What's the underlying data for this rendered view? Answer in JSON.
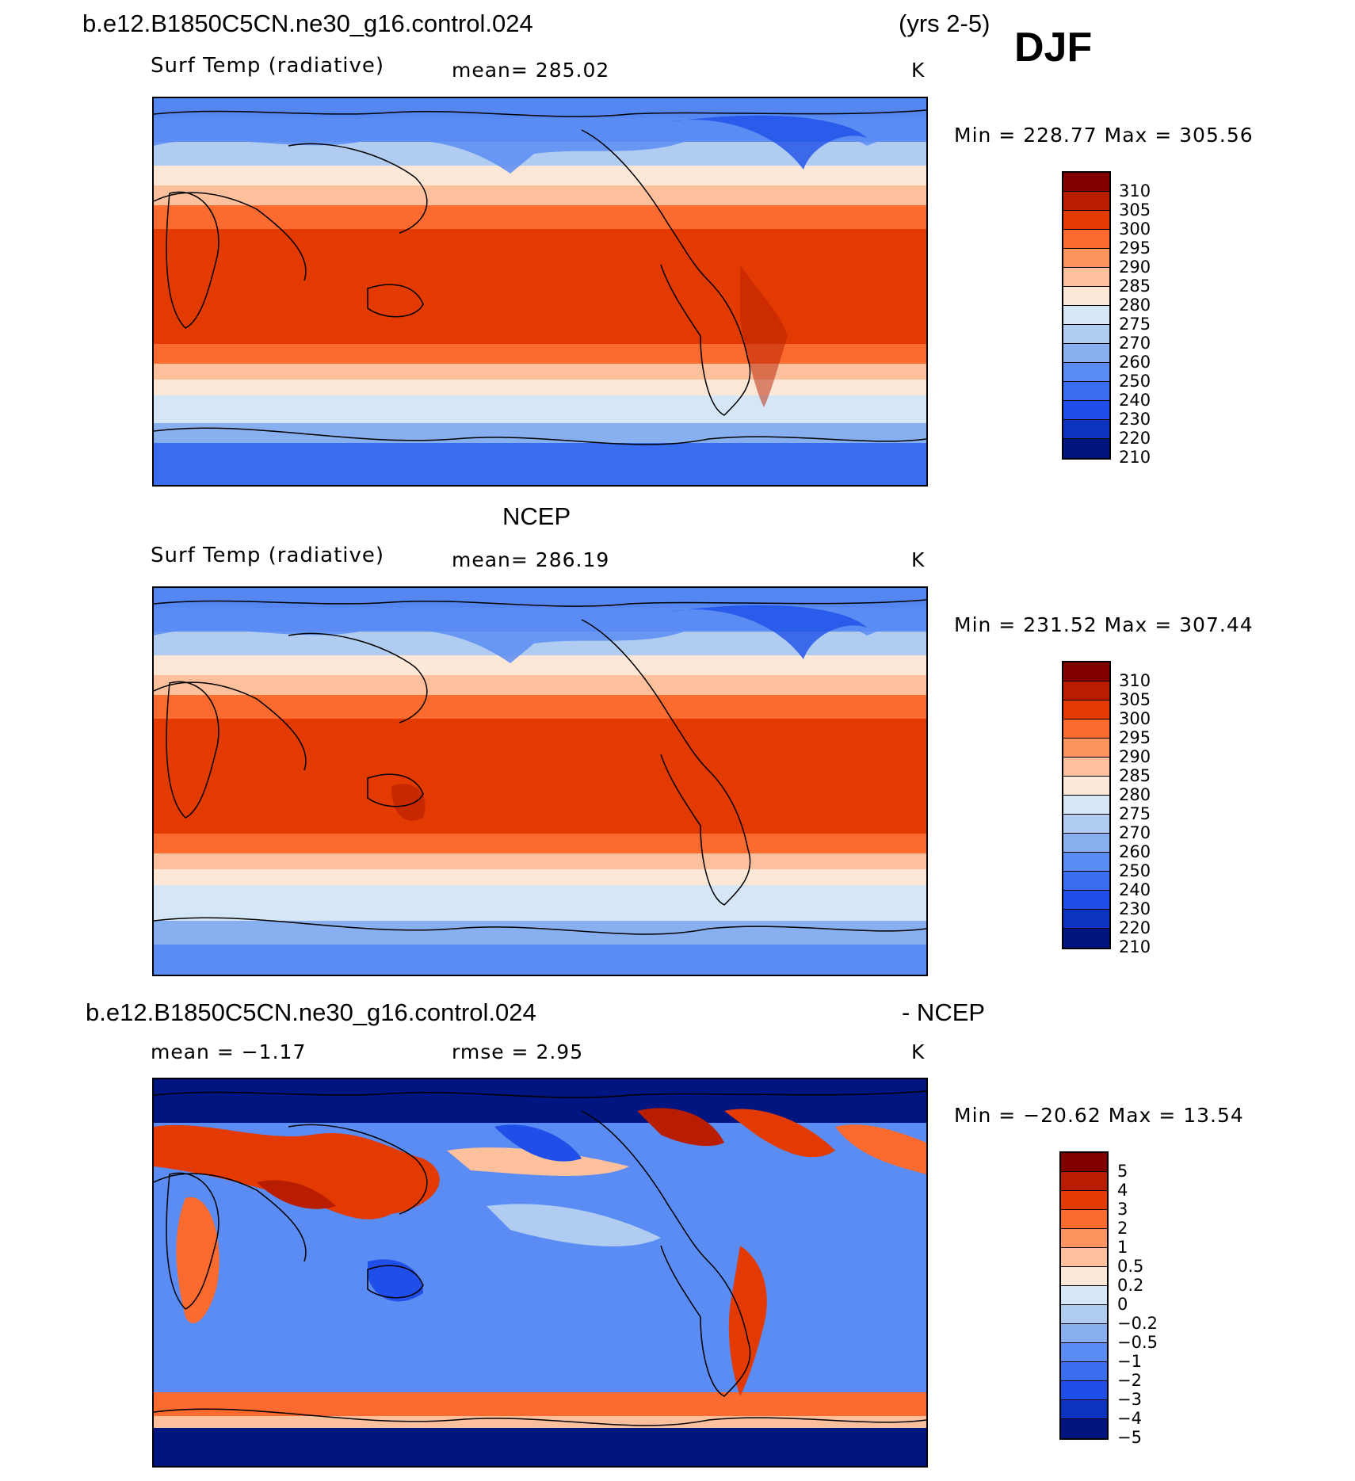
{
  "header": {
    "case": "b.e12.B1850C5CN.ne30_g16.control.024",
    "years": "(yrs 2-5)",
    "season": "DJF"
  },
  "panels": [
    {
      "title": "",
      "variable": "Surf Temp (radiative)",
      "mean": "mean=  285.02",
      "units": "K",
      "minmax": "Min  =  228.77  Max  =  305.56",
      "colorbar": {
        "colors": [
          "#800000",
          "#b81d00",
          "#e23a00",
          "#fb6a2e",
          "#fc9460",
          "#fdc09c",
          "#fde8d8",
          "#d5e6f6",
          "#b0ccf1",
          "#88aff0",
          "#5a8cf3",
          "#3a6ef0",
          "#1f4fe8",
          "#0d34c0",
          "#00157f"
        ],
        "labels": [
          "310",
          "305",
          "300",
          "295",
          "290",
          "285",
          "280",
          "275",
          "270",
          "260",
          "250",
          "240",
          "230",
          "220",
          "210"
        ]
      }
    },
    {
      "title": "NCEP",
      "variable": "Surf Temp (radiative)",
      "mean": "mean=  286.19",
      "units": "K",
      "minmax": "Min  =  231.52  Max  =  307.44",
      "colorbar": {
        "colors": [
          "#800000",
          "#b81d00",
          "#e23a00",
          "#fb6a2e",
          "#fc9460",
          "#fdc09c",
          "#fde8d8",
          "#d5e6f6",
          "#b0ccf1",
          "#88aff0",
          "#5a8cf3",
          "#3a6ef0",
          "#1f4fe8",
          "#0d34c0",
          "#00157f"
        ],
        "labels": [
          "310",
          "305",
          "300",
          "295",
          "290",
          "285",
          "280",
          "275",
          "270",
          "260",
          "250",
          "240",
          "230",
          "220",
          "210"
        ]
      }
    },
    {
      "title_left": "b.e12.B1850C5CN.ne30_g16.control.024",
      "title_right": "- NCEP",
      "mean": "mean =   −1.17",
      "rmse": "rmse =     2.95",
      "units": "K",
      "minmax": "Min  =  −20.62  Max  =    13.54",
      "colorbar": {
        "colors": [
          "#800000",
          "#b81d00",
          "#e23a00",
          "#fb6a2e",
          "#fc9460",
          "#fdc09c",
          "#fde8d8",
          "#d5e6f6",
          "#b0ccf1",
          "#88aff0",
          "#5a8cf3",
          "#3a6ef0",
          "#1f4fe8",
          "#0d34c0",
          "#00157f"
        ],
        "labels": [
          "5",
          "4",
          "3",
          "2",
          "1",
          "0.5",
          "0.2",
          "0",
          "−0.2",
          "−0.5",
          "−1",
          "−2",
          "−3",
          "−4",
          "−5"
        ]
      }
    }
  ]
}
